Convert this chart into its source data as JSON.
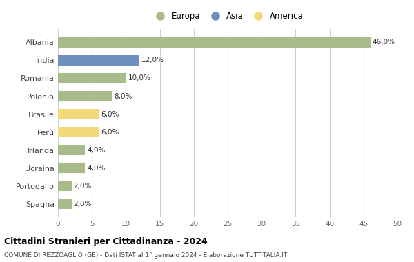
{
  "categories": [
    "Albania",
    "India",
    "Romania",
    "Polonia",
    "Brasile",
    "Perù",
    "Irlanda",
    "Ucraina",
    "Portogallo",
    "Spagna"
  ],
  "values": [
    46.0,
    12.0,
    10.0,
    8.0,
    6.0,
    6.0,
    4.0,
    4.0,
    2.0,
    2.0
  ],
  "colors": [
    "#a8bb8a",
    "#6e8fbf",
    "#a8bb8a",
    "#a8bb8a",
    "#f5d87a",
    "#f5d87a",
    "#a8bb8a",
    "#a8bb8a",
    "#a8bb8a",
    "#a8bb8a"
  ],
  "legend": [
    {
      "label": "Europa",
      "color": "#a8bb8a"
    },
    {
      "label": "Asia",
      "color": "#6e8fbf"
    },
    {
      "label": "America",
      "color": "#f5d87a"
    }
  ],
  "xlim": [
    0,
    50
  ],
  "xticks": [
    0,
    5,
    10,
    15,
    20,
    25,
    30,
    35,
    40,
    45,
    50
  ],
  "title": "Cittadini Stranieri per Cittadinanza - 2024",
  "subtitle": "COMUNE DI REZZOAGLIO (GE) - Dati ISTAT al 1° gennaio 2024 - Elaborazione TUTTITALIA.IT",
  "background_color": "#ffffff",
  "grid_color": "#d0d0d0",
  "bar_height": 0.55
}
